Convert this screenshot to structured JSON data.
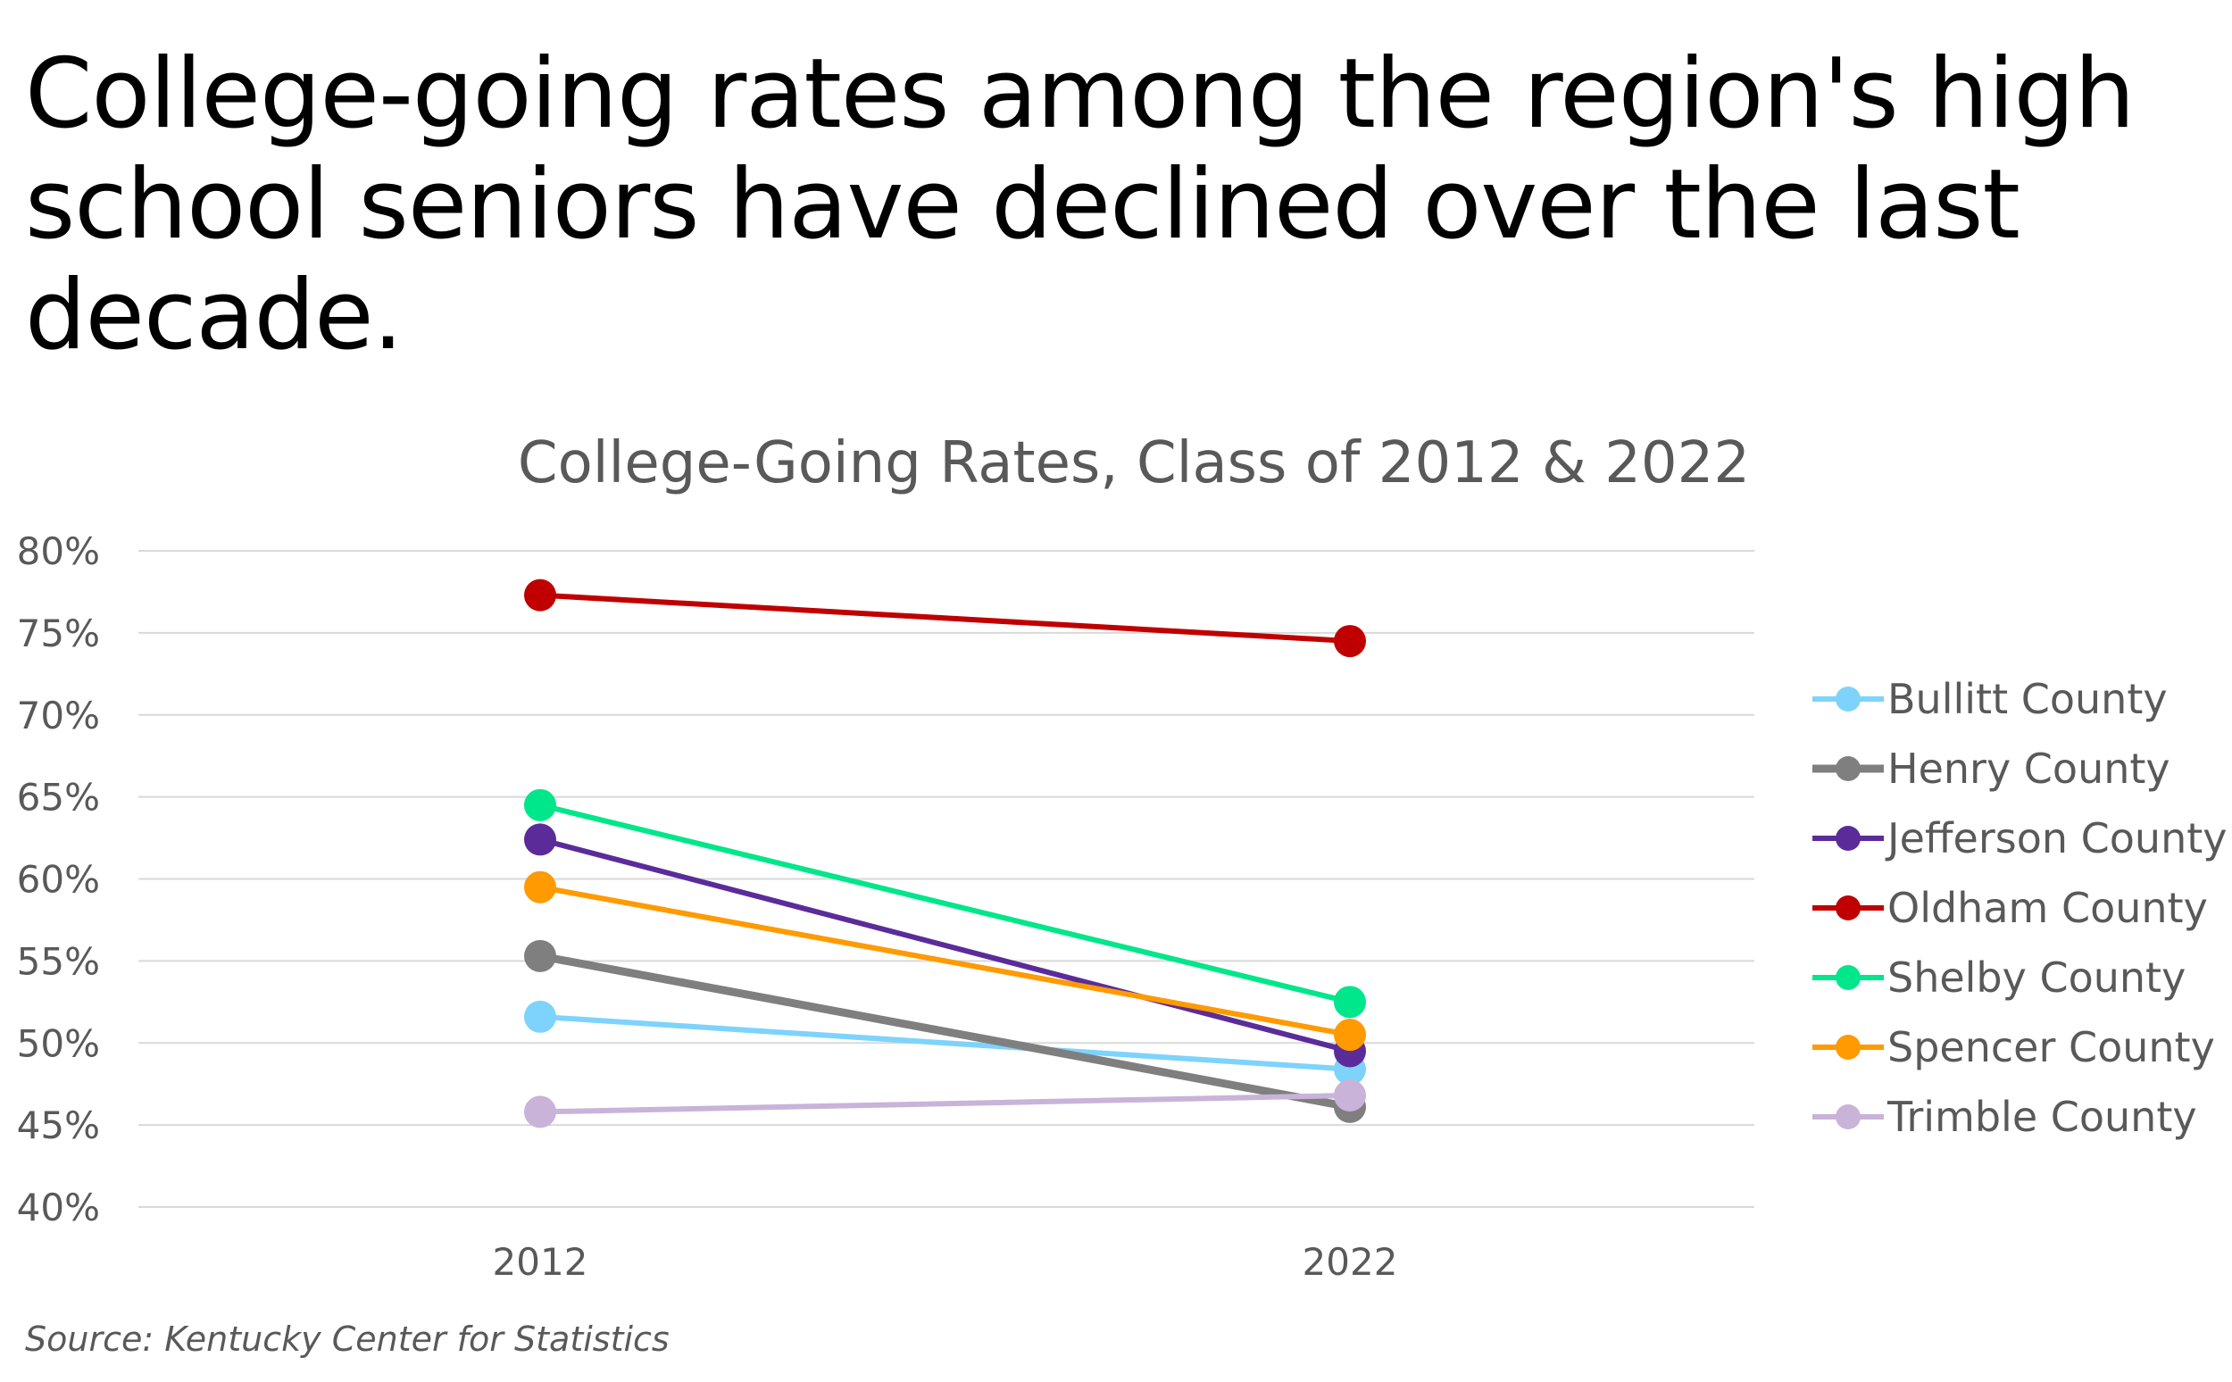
{
  "headline": "College-going rates among the region's high school seniors have declined over the last decade.",
  "source": "Source: Kentucky Center for Statistics",
  "chart_data": {
    "type": "line",
    "title": "College-Going Rates, Class of 2012 & 2022",
    "xlabel": "",
    "ylabel": "",
    "categories": [
      "2012",
      "2022"
    ],
    "ylim": [
      0.4,
      0.8
    ],
    "y_ticks": [
      "40%",
      "45%",
      "50%",
      "55%",
      "60%",
      "65%",
      "70%",
      "75%",
      "80%"
    ],
    "y_tick_values": [
      0.4,
      0.45,
      0.5,
      0.55,
      0.6,
      0.65,
      0.7,
      0.75,
      0.8
    ],
    "grid": true,
    "legend_position": "right",
    "series": [
      {
        "name": "Bullitt County",
        "values": [
          0.516,
          0.484
        ],
        "color": "#7dd3fc"
      },
      {
        "name": "Henry County",
        "values": [
          0.553,
          0.461
        ],
        "color": "#7f7f7f"
      },
      {
        "name": "Jefferson County",
        "values": [
          0.624,
          0.495
        ],
        "color": "#5b2c99"
      },
      {
        "name": "Oldham County",
        "values": [
          0.773,
          0.745
        ],
        "color": "#c00000"
      },
      {
        "name": "Shelby County",
        "values": [
          0.645,
          0.525
        ],
        "color": "#00e68a"
      },
      {
        "name": "Spencer County",
        "values": [
          0.595,
          0.505
        ],
        "color": "#ff9a00"
      },
      {
        "name": "Trimble County",
        "values": [
          0.458,
          0.468
        ],
        "color": "#c9b3d9"
      }
    ]
  }
}
